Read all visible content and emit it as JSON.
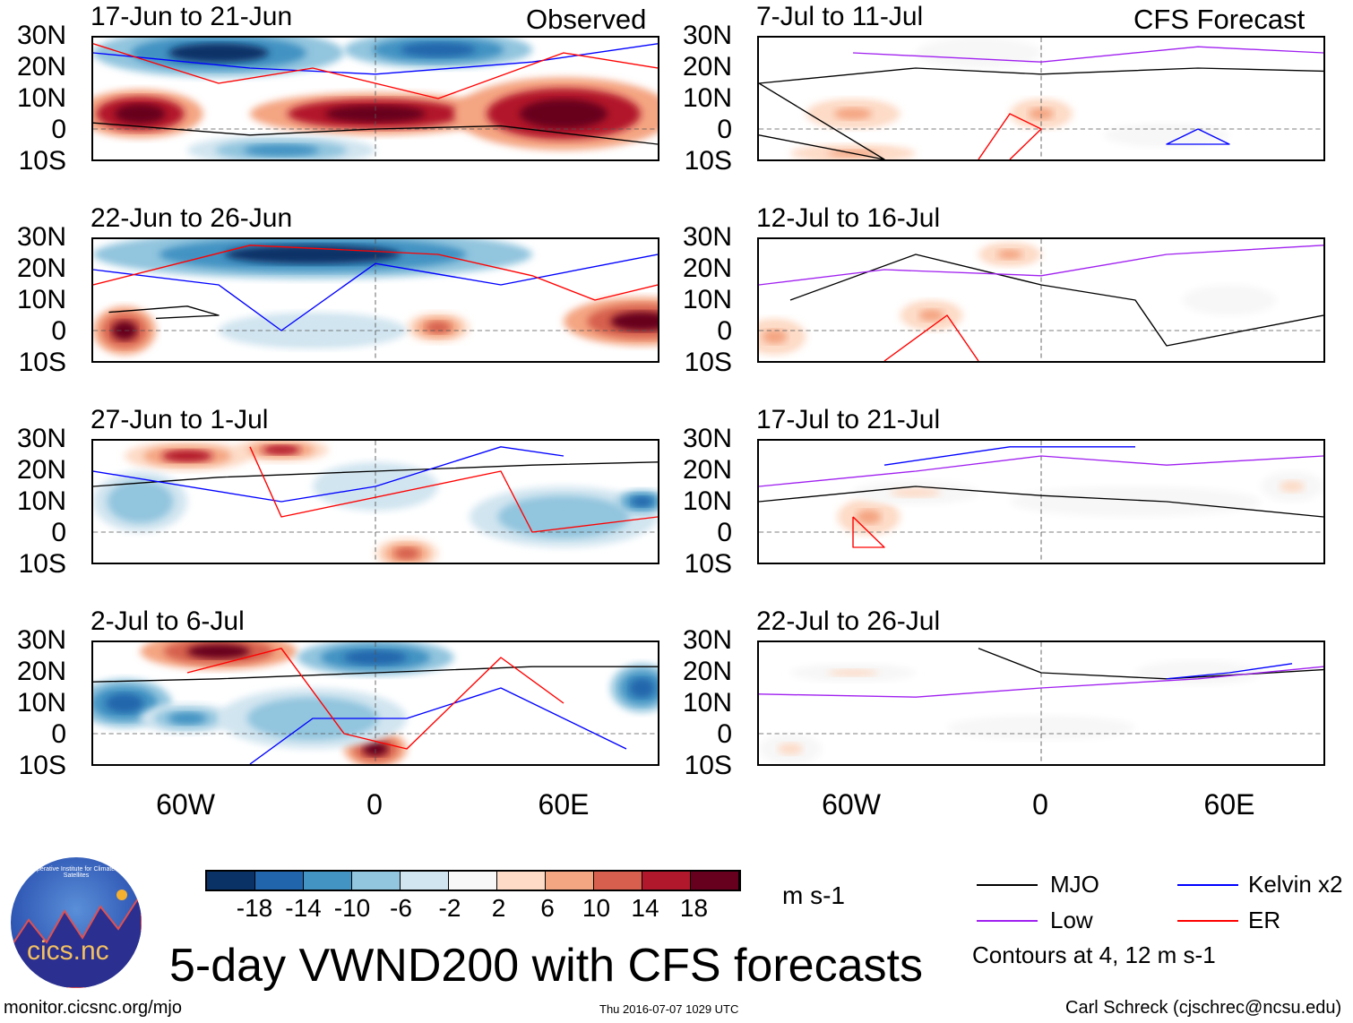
{
  "header": {
    "left_label": "Observed",
    "right_label": "CFS Forecast"
  },
  "lat_labels": [
    "30N",
    "20N",
    "10N",
    "0",
    "10S"
  ],
  "lon_labels": [
    "60W",
    "0",
    "60E"
  ],
  "colors": {
    "levels": [
      "#0a3267",
      "#2166ac",
      "#4393c3",
      "#92c5de",
      "#d1e5f0",
      "#f7f7f7",
      "#fddbc7",
      "#f4a582",
      "#d6604d",
      "#b2182b",
      "#67001f"
    ],
    "MJO": "#000000",
    "Kelvin": "#0000ff",
    "Low": "#a020f0",
    "ER": "#ff0000"
  },
  "colorbar": {
    "ticks": [
      "-18",
      "-14",
      "-10",
      "-6",
      "-2",
      "2",
      "6",
      "10",
      "14",
      "18"
    ],
    "units": "m s-1"
  },
  "legend": {
    "items": [
      {
        "label": "MJO",
        "key": "MJO"
      },
      {
        "label": "Kelvin x2",
        "key": "Kelvin"
      },
      {
        "label": "Low",
        "key": "Low"
      },
      {
        "label": "ER",
        "key": "ER"
      }
    ],
    "note": "Contours at 4, 12 m s-1"
  },
  "title": "5-day VWND200 with CFS forecasts",
  "footer": {
    "url": "monitor.cicsnc.org/mjo",
    "timestamp": "Thu 2016-07-07 1029 UTC",
    "author": "Carl Schreck (cjschrec@ncsu.edu)"
  },
  "logo": {
    "text": "cics.nc",
    "ring": "Cooperative Institute for Climate and Satellites"
  },
  "chart_data": {
    "type": "heatmap",
    "variable": "VWND200 anomaly",
    "units": "m s-1",
    "xlim": [
      -90,
      90
    ],
    "ylim": [
      -10,
      30
    ],
    "panels": [
      {
        "title": "17-Jun to 21-Jun",
        "column": "Observed",
        "anomalies": [
          {
            "lon": -50,
            "lat": 25,
            "rx": 40,
            "ry": 8,
            "v": -20
          },
          {
            "lon": 20,
            "lat": 26,
            "rx": 30,
            "ry": 6,
            "v": -18
          },
          {
            "lon": -75,
            "lat": 5,
            "rx": 20,
            "ry": 8,
            "v": 20
          },
          {
            "lon": 0,
            "lat": 5,
            "rx": 40,
            "ry": 7,
            "v": 20
          },
          {
            "lon": 60,
            "lat": 5,
            "rx": 35,
            "ry": 12,
            "v": 20
          },
          {
            "lon": -30,
            "lat": -7,
            "rx": 30,
            "ry": 5,
            "v": -14
          }
        ],
        "contours": [
          {
            "type": "MJO",
            "pts": [
              [
                -90,
                2
              ],
              [
                -40,
                -2
              ],
              [
                0,
                0
              ],
              [
                40,
                1
              ],
              [
                90,
                -5
              ]
            ]
          },
          {
            "type": "Kelvin",
            "pts": [
              [
                -90,
                25
              ],
              [
                -40,
                20
              ],
              [
                0,
                18
              ],
              [
                50,
                22
              ],
              [
                90,
                28
              ]
            ]
          },
          {
            "type": "ER",
            "pts": [
              [
                -90,
                28
              ],
              [
                -50,
                15
              ],
              [
                -20,
                20
              ],
              [
                20,
                10
              ],
              [
                60,
                25
              ],
              [
                90,
                20
              ]
            ]
          }
        ]
      },
      {
        "title": "22-Jun to 26-Jun",
        "column": "Observed",
        "anomalies": [
          {
            "lon": -20,
            "lat": 25,
            "rx": 70,
            "ry": 8,
            "v": -20
          },
          {
            "lon": -80,
            "lat": 0,
            "rx": 10,
            "ry": 8,
            "v": 18
          },
          {
            "lon": 85,
            "lat": 3,
            "rx": 25,
            "ry": 8,
            "v": 18
          },
          {
            "lon": 20,
            "lat": 1,
            "rx": 10,
            "ry": 5,
            "v": 10
          },
          {
            "lon": -20,
            "lat": 0,
            "rx": 30,
            "ry": 6,
            "v": -6
          }
        ],
        "contours": [
          {
            "type": "MJO",
            "pts": [
              [
                -85,
                6
              ],
              [
                -60,
                8
              ],
              [
                -50,
                5
              ],
              [
                -70,
                4
              ]
            ]
          },
          {
            "type": "Kelvin",
            "pts": [
              [
                -90,
                20
              ],
              [
                -50,
                15
              ],
              [
                -30,
                0
              ],
              [
                0,
                22
              ],
              [
                40,
                15
              ],
              [
                90,
                25
              ]
            ]
          },
          {
            "type": "ER",
            "pts": [
              [
                -90,
                15
              ],
              [
                -40,
                28
              ],
              [
                20,
                25
              ],
              [
                50,
                18
              ],
              [
                70,
                10
              ],
              [
                90,
                15
              ]
            ]
          }
        ]
      },
      {
        "title": "27-Jun to 1-Jul",
        "column": "Observed",
        "anomalies": [
          {
            "lon": -60,
            "lat": 25,
            "rx": 20,
            "ry": 5,
            "v": 14
          },
          {
            "lon": -30,
            "lat": 27,
            "rx": 15,
            "ry": 4,
            "v": 14
          },
          {
            "lon": -75,
            "lat": 10,
            "rx": 15,
            "ry": 10,
            "v": -10
          },
          {
            "lon": 60,
            "lat": 5,
            "rx": 30,
            "ry": 10,
            "v": -10
          },
          {
            "lon": 85,
            "lat": 10,
            "rx": 8,
            "ry": 4,
            "v": -18
          },
          {
            "lon": 10,
            "lat": -7,
            "rx": 10,
            "ry": 5,
            "v": 10
          },
          {
            "lon": 0,
            "lat": 15,
            "rx": 20,
            "ry": 8,
            "v": -6
          }
        ],
        "contours": [
          {
            "type": "MJO",
            "pts": [
              [
                -90,
                15
              ],
              [
                -50,
                18
              ],
              [
                0,
                20
              ],
              [
                50,
                22
              ],
              [
                90,
                23
              ]
            ]
          },
          {
            "type": "Kelvin",
            "pts": [
              [
                -90,
                20
              ],
              [
                -30,
                10
              ],
              [
                0,
                15
              ],
              [
                40,
                28
              ],
              [
                60,
                25
              ]
            ]
          },
          {
            "type": "ER",
            "pts": [
              [
                -40,
                28
              ],
              [
                -30,
                5
              ],
              [
                40,
                20
              ],
              [
                50,
                0
              ],
              [
                90,
                5
              ]
            ]
          }
        ]
      },
      {
        "title": "2-Jul to 6-Jul",
        "column": "Observed",
        "anomalies": [
          {
            "lon": -50,
            "lat": 27,
            "rx": 25,
            "ry": 6,
            "v": 18
          },
          {
            "lon": -80,
            "lat": 10,
            "rx": 15,
            "ry": 8,
            "v": -18
          },
          {
            "lon": -60,
            "lat": 5,
            "rx": 15,
            "ry": 5,
            "v": -14
          },
          {
            "lon": 0,
            "lat": 25,
            "rx": 25,
            "ry": 6,
            "v": -18
          },
          {
            "lon": 0,
            "lat": -5,
            "rx": 10,
            "ry": 6,
            "v": 18
          },
          {
            "lon": 85,
            "lat": 15,
            "rx": 10,
            "ry": 8,
            "v": -18
          },
          {
            "lon": -20,
            "lat": 5,
            "rx": 30,
            "ry": 10,
            "v": -10
          }
        ],
        "contours": [
          {
            "type": "MJO",
            "pts": [
              [
                -90,
                17
              ],
              [
                -50,
                18
              ],
              [
                0,
                20
              ],
              [
                50,
                22
              ],
              [
                90,
                22
              ]
            ]
          },
          {
            "type": "Kelvin",
            "pts": [
              [
                -40,
                -10
              ],
              [
                -20,
                5
              ],
              [
                10,
                5
              ],
              [
                40,
                15
              ],
              [
                80,
                -5
              ]
            ]
          },
          {
            "type": "ER",
            "pts": [
              [
                -60,
                20
              ],
              [
                -30,
                28
              ],
              [
                -10,
                0
              ],
              [
                10,
                -5
              ],
              [
                40,
                25
              ],
              [
                60,
                10
              ]
            ]
          }
        ]
      },
      {
        "title": "7-Jul to 11-Jul",
        "column": "CFS Forecast",
        "anomalies": [
          {
            "lon": -60,
            "lat": 5,
            "rx": 15,
            "ry": 5,
            "v": 6
          },
          {
            "lon": 0,
            "lat": 5,
            "rx": 10,
            "ry": 5,
            "v": 6
          },
          {
            "lon": -20,
            "lat": 25,
            "rx": 20,
            "ry": 5,
            "v": -2
          },
          {
            "lon": -60,
            "lat": -8,
            "rx": 20,
            "ry": 3,
            "v": 6
          },
          {
            "lon": 40,
            "lat": -2,
            "rx": 20,
            "ry": 4,
            "v": -2
          }
        ],
        "contours": [
          {
            "type": "MJO",
            "pts": [
              [
                -90,
                -2
              ],
              [
                -50,
                -10
              ],
              [
                -90,
                15
              ],
              [
                -40,
                20
              ],
              [
                0,
                18
              ],
              [
                50,
                20
              ],
              [
                90,
                19
              ]
            ]
          },
          {
            "type": "Low",
            "pts": [
              [
                -60,
                25
              ],
              [
                0,
                22
              ],
              [
                50,
                27
              ],
              [
                90,
                25
              ]
            ]
          },
          {
            "type": "ER",
            "pts": [
              [
                -20,
                -10
              ],
              [
                -10,
                5
              ],
              [
                0,
                0
              ],
              [
                -10,
                -10
              ]
            ]
          },
          {
            "type": "Kelvin",
            "pts": [
              [
                50,
                0
              ],
              [
                60,
                -5
              ],
              [
                40,
                -5
              ],
              [
                50,
                0
              ]
            ]
          }
        ]
      },
      {
        "title": "12-Jul to 16-Jul",
        "column": "CFS Forecast",
        "anomalies": [
          {
            "lon": -35,
            "lat": 5,
            "rx": 10,
            "ry": 5,
            "v": 6
          },
          {
            "lon": -85,
            "lat": -2,
            "rx": 10,
            "ry": 6,
            "v": 6
          },
          {
            "lon": 60,
            "lat": 10,
            "rx": 15,
            "ry": 5,
            "v": -2
          },
          {
            "lon": -10,
            "lat": 25,
            "rx": 10,
            "ry": 4,
            "v": 6
          }
        ],
        "contours": [
          {
            "type": "MJO",
            "pts": [
              [
                -80,
                10
              ],
              [
                -40,
                25
              ],
              [
                0,
                15
              ],
              [
                30,
                10
              ],
              [
                40,
                -5
              ],
              [
                90,
                5
              ]
            ]
          },
          {
            "type": "Low",
            "pts": [
              [
                -90,
                15
              ],
              [
                -50,
                20
              ],
              [
                0,
                18
              ],
              [
                40,
                25
              ],
              [
                90,
                28
              ]
            ]
          },
          {
            "type": "ER",
            "pts": [
              [
                -50,
                -10
              ],
              [
                -30,
                5
              ],
              [
                -20,
                -10
              ]
            ]
          }
        ]
      },
      {
        "title": "17-Jul to 21-Jul",
        "column": "CFS Forecast",
        "anomalies": [
          {
            "lon": -55,
            "lat": 5,
            "rx": 10,
            "ry": 6,
            "v": 6
          },
          {
            "lon": 30,
            "lat": 10,
            "rx": 40,
            "ry": 5,
            "v": -2
          },
          {
            "lon": 80,
            "lat": 15,
            "rx": 10,
            "ry": 5,
            "v": 2
          },
          {
            "lon": -40,
            "lat": 13,
            "rx": 20,
            "ry": 4,
            "v": 2
          }
        ],
        "contours": [
          {
            "type": "MJO",
            "pts": [
              [
                -90,
                10
              ],
              [
                -40,
                15
              ],
              [
                0,
                12
              ],
              [
                40,
                10
              ],
              [
                90,
                5
              ]
            ]
          },
          {
            "type": "Low",
            "pts": [
              [
                -90,
                15
              ],
              [
                -40,
                20
              ],
              [
                0,
                25
              ],
              [
                40,
                22
              ],
              [
                90,
                25
              ]
            ]
          },
          {
            "type": "Kelvin",
            "pts": [
              [
                -50,
                22
              ],
              [
                -10,
                28
              ],
              [
                30,
                28
              ]
            ]
          },
          {
            "type": "ER",
            "pts": [
              [
                -60,
                5
              ],
              [
                -50,
                -5
              ],
              [
                -60,
                -5
              ],
              [
                -60,
                5
              ]
            ]
          }
        ]
      },
      {
        "title": "22-Jul to 26-Jul",
        "column": "CFS Forecast",
        "anomalies": [
          {
            "lon": -60,
            "lat": 20,
            "rx": 20,
            "ry": 3,
            "v": 2
          },
          {
            "lon": 0,
            "lat": 2,
            "rx": 30,
            "ry": 4,
            "v": -2
          },
          {
            "lon": 50,
            "lat": 20,
            "rx": 20,
            "ry": 4,
            "v": -2
          },
          {
            "lon": -80,
            "lat": -5,
            "rx": 10,
            "ry": 5,
            "v": 2
          }
        ],
        "contours": [
          {
            "type": "MJO",
            "pts": [
              [
                -20,
                28
              ],
              [
                0,
                20
              ],
              [
                40,
                18
              ],
              [
                90,
                21
              ]
            ]
          },
          {
            "type": "Low",
            "pts": [
              [
                -90,
                13
              ],
              [
                -40,
                12
              ],
              [
                0,
                15
              ],
              [
                50,
                18
              ],
              [
                90,
                22
              ]
            ]
          },
          {
            "type": "Kelvin",
            "pts": [
              [
                40,
                18
              ],
              [
                60,
                20
              ],
              [
                80,
                23
              ]
            ]
          }
        ]
      }
    ]
  }
}
